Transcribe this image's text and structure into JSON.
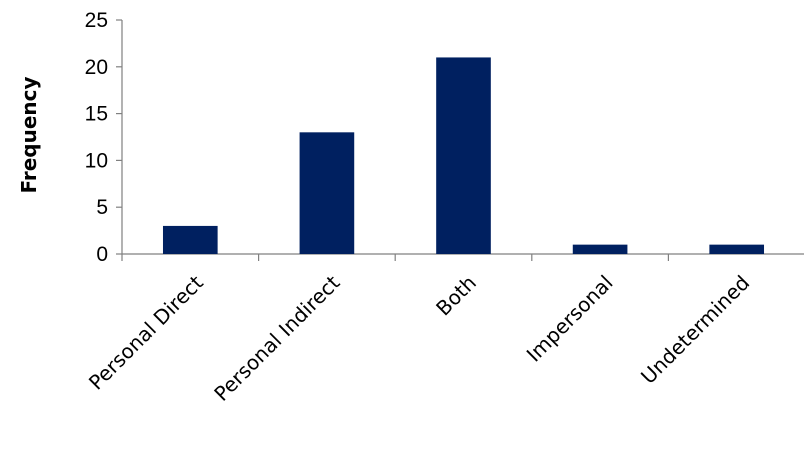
{
  "chart_data": {
    "type": "bar",
    "categories": [
      "Personal Direct",
      "Personal Indirect",
      "Both",
      "Impersonal",
      "Undetermined"
    ],
    "values": [
      3,
      13,
      21,
      1,
      1
    ],
    "title": "",
    "xlabel": "",
    "ylabel": "Frequency",
    "ylim": [
      0,
      25
    ],
    "yticks": [
      0,
      5,
      10,
      15,
      20,
      25
    ],
    "grid": false,
    "legend": "none",
    "bar_color": "#002060"
  }
}
